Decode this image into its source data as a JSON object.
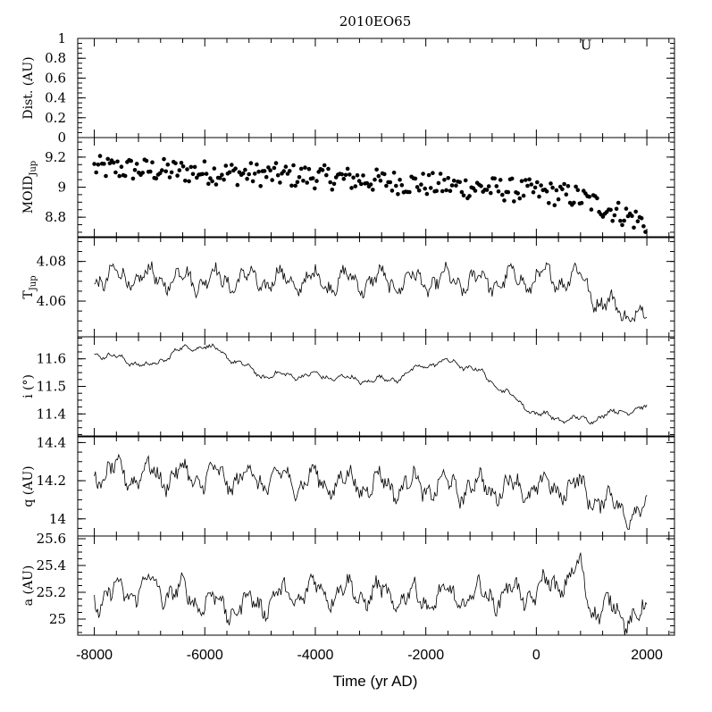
{
  "chart_data": {
    "type": "line",
    "title": "2010EO65",
    "xlabel": "Time (yr AD)",
    "xlim": [
      -8300,
      2500
    ],
    "xticks": [
      -8000,
      -6000,
      -4000,
      -2000,
      0,
      2000
    ],
    "xtick_labels": [
      "-8000",
      "-6000",
      "-4000",
      "-2000",
      "0",
      "2000"
    ],
    "panels": [
      {
        "id": "dist",
        "ylabel": "Dist. (AU)",
        "ylim": [
          0,
          1
        ],
        "yticks": [
          0,
          0.2,
          0.4,
          0.6,
          0.8,
          1
        ],
        "ytick_labels": [
          "0",
          "0.2",
          "0.4",
          "0.6",
          "0.8",
          "1"
        ],
        "marker_symbol": "U",
        "marker": {
          "x": 900,
          "y": 0.97
        }
      },
      {
        "id": "moid",
        "ylabel": "MOID",
        "ylabel_sub": "Jup",
        "style": "scatter",
        "ylim": [
          8.67,
          9.33
        ],
        "yticks": [
          8.8,
          9,
          9.2
        ],
        "ytick_labels": [
          "8.8",
          "9",
          "9.2"
        ],
        "anchors": [
          [
            -8000,
            9.13
          ],
          [
            -6000,
            9.1
          ],
          [
            -4000,
            9.07
          ],
          [
            -2000,
            9.02
          ],
          [
            0,
            8.97
          ],
          [
            700,
            8.94
          ],
          [
            1200,
            8.87
          ],
          [
            2000,
            8.76
          ]
        ],
        "amplitude": 0.08
      },
      {
        "id": "tjup",
        "ylabel": "T",
        "ylabel_sub": "Jup",
        "style": "line",
        "ylim": [
          4.042,
          4.092
        ],
        "yticks": [
          4.06,
          4.08
        ],
        "ytick_labels": [
          "4.06",
          "4.08"
        ],
        "anchors": [
          [
            -8000,
            4.072
          ],
          [
            -4000,
            4.07
          ],
          [
            -1000,
            4.07
          ],
          [
            800,
            4.072
          ],
          [
            1200,
            4.058
          ],
          [
            2000,
            4.052
          ]
        ],
        "amplitude": 0.01
      },
      {
        "id": "incl",
        "ylabel": "i (°)",
        "style": "line",
        "ylim": [
          11.32,
          11.68
        ],
        "yticks": [
          11.4,
          11.5,
          11.6
        ],
        "ytick_labels": [
          "11.4",
          "11.5",
          "11.6"
        ],
        "anchors": [
          [
            -8000,
            11.62
          ],
          [
            -7500,
            11.6
          ],
          [
            -7000,
            11.57
          ],
          [
            -6500,
            11.63
          ],
          [
            -6000,
            11.65
          ],
          [
            -5500,
            11.6
          ],
          [
            -5000,
            11.54
          ],
          [
            -4000,
            11.54
          ],
          [
            -3000,
            11.52
          ],
          [
            -2500,
            11.53
          ],
          [
            -2000,
            11.58
          ],
          [
            -1500,
            11.59
          ],
          [
            -1000,
            11.55
          ],
          [
            -500,
            11.47
          ],
          [
            0,
            11.4
          ],
          [
            500,
            11.38
          ],
          [
            1000,
            11.38
          ],
          [
            1500,
            11.41
          ],
          [
            2000,
            11.42
          ]
        ],
        "amplitude": 0.02
      },
      {
        "id": "q",
        "ylabel": "q (AU)",
        "style": "line",
        "ylim": [
          13.91,
          14.43
        ],
        "yticks": [
          14,
          14.2,
          14.4
        ],
        "ytick_labels": [
          "14",
          "14.2",
          "14.4"
        ],
        "anchors": [
          [
            -8000,
            14.24
          ],
          [
            -5000,
            14.21
          ],
          [
            -2000,
            14.17
          ],
          [
            0,
            14.16
          ],
          [
            700,
            14.17
          ],
          [
            1300,
            14.08
          ],
          [
            2000,
            14.02
          ]
        ],
        "amplitude": 0.12
      },
      {
        "id": "a",
        "ylabel": "a (AU)",
        "style": "line",
        "ylim": [
          24.88,
          25.62
        ],
        "yticks": [
          25,
          25.2,
          25.4,
          25.6
        ],
        "ytick_labels": [
          "25",
          "25.2",
          "25.4",
          "25.6"
        ],
        "anchors": [
          [
            -8000,
            25.15
          ],
          [
            -7000,
            25.25
          ],
          [
            -5500,
            25.08
          ],
          [
            -4000,
            25.22
          ],
          [
            -2000,
            25.15
          ],
          [
            0,
            25.2
          ],
          [
            800,
            25.35
          ],
          [
            1000,
            25.1
          ],
          [
            2000,
            25.0
          ]
        ],
        "amplitude": 0.17
      }
    ]
  }
}
